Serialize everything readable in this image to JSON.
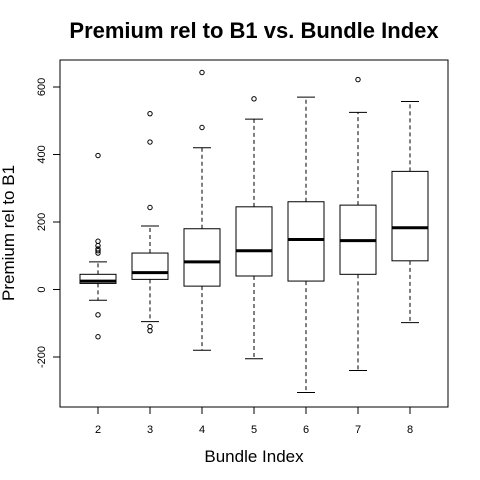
{
  "chart_data": {
    "type": "boxplot",
    "title": "Premium rel to B1 vs. Bundle Index",
    "xlabel": "Bundle Index",
    "ylabel": "Premium rel to B1",
    "categories": [
      "2",
      "3",
      "4",
      "5",
      "6",
      "7",
      "8"
    ],
    "ylim": [
      -345,
      690
    ],
    "yticks": [
      -200,
      0,
      200,
      400,
      600
    ],
    "yticklabels": [
      "-200",
      "0",
      "200",
      "400",
      "600"
    ],
    "series": [
      {
        "category": "2",
        "whisker_low": -32,
        "q1": 18,
        "median": 25,
        "q3": 45,
        "whisker_high": 82,
        "outliers": [
          397,
          143,
          130,
          120,
          115,
          108,
          -75,
          -140
        ]
      },
      {
        "category": "3",
        "whisker_low": -95,
        "q1": 30,
        "median": 50,
        "q3": 108,
        "whisker_high": 188,
        "outliers": [
          521,
          437,
          243,
          -110,
          -122
        ]
      },
      {
        "category": "4",
        "whisker_low": -180,
        "q1": 10,
        "median": 82,
        "q3": 180,
        "whisker_high": 420,
        "outliers": [
          643,
          480
        ]
      },
      {
        "category": "5",
        "whisker_low": -205,
        "q1": 40,
        "median": 115,
        "q3": 245,
        "whisker_high": 505,
        "outliers": [
          565
        ]
      },
      {
        "category": "6",
        "whisker_low": -305,
        "q1": 25,
        "median": 148,
        "q3": 260,
        "whisker_high": 570,
        "outliers": []
      },
      {
        "category": "7",
        "whisker_low": -240,
        "q1": 45,
        "median": 145,
        "q3": 250,
        "whisker_high": 525,
        "outliers": [
          622
        ]
      },
      {
        "category": "8",
        "whisker_low": -98,
        "q1": 85,
        "median": 183,
        "q3": 350,
        "whisker_high": 557,
        "outliers": []
      }
    ],
    "grid": false,
    "legend": "none"
  }
}
